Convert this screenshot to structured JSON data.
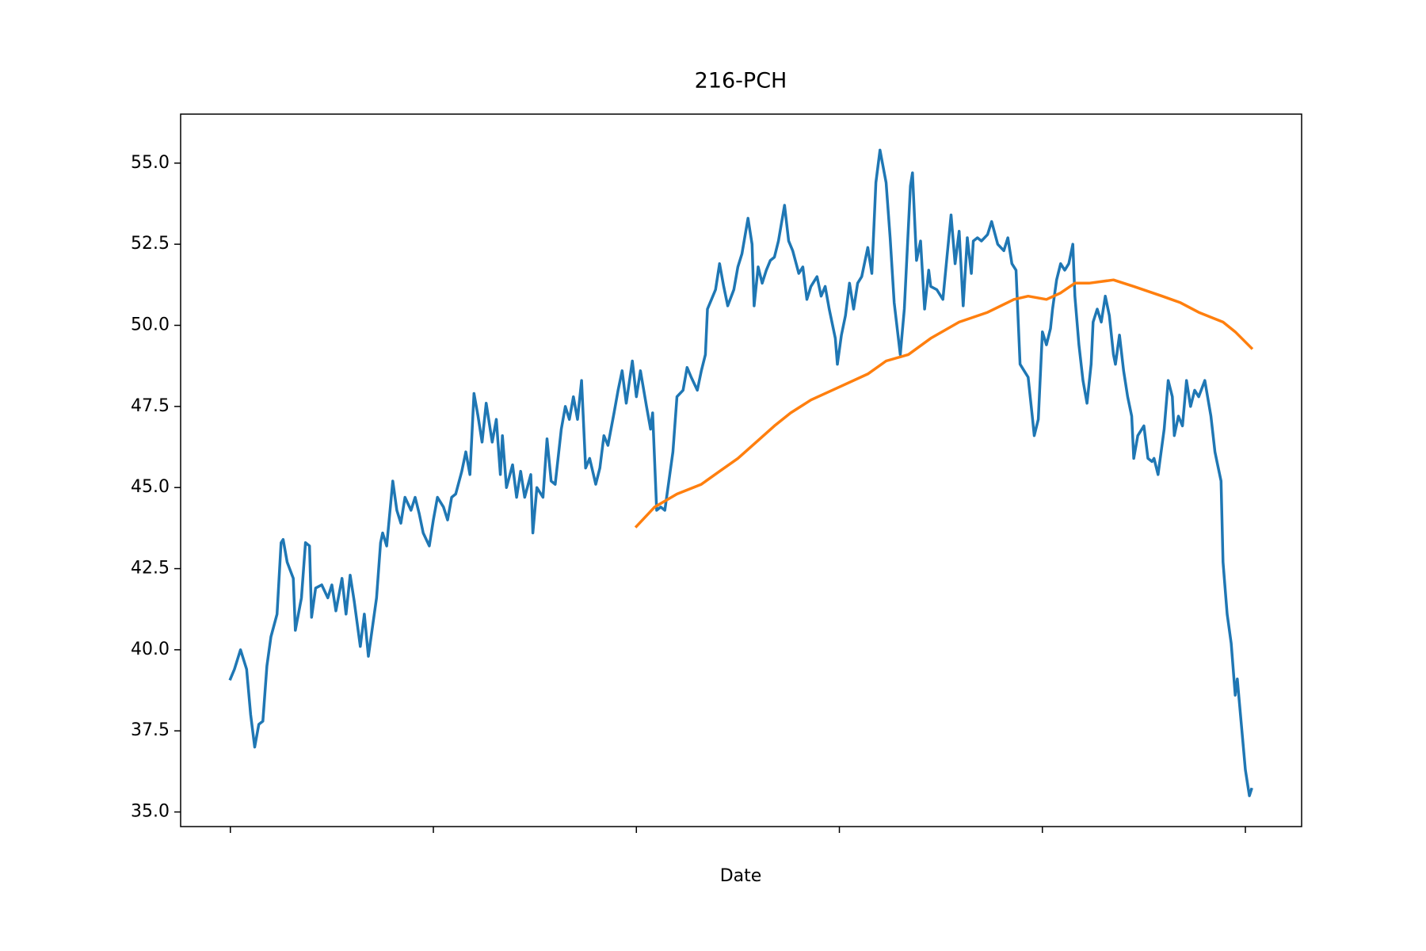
{
  "chart_data": {
    "type": "line",
    "title": "216-PCH",
    "x_label": "Date",
    "xlim": [
      -24.5,
      527.7
    ],
    "xticks": [
      0,
      100,
      200,
      300,
      400,
      500
    ],
    "ylim": [
      34.55,
      56.51
    ],
    "yticks": [
      {
        "value": 35,
        "label": "35.0"
      },
      {
        "value": 37.5,
        "label": "37.5"
      },
      {
        "value": 40,
        "label": "40.0"
      },
      {
        "value": 42.5,
        "label": "42.5"
      },
      {
        "value": 45,
        "label": "45.0"
      },
      {
        "value": 47.5,
        "label": "47.5"
      },
      {
        "value": 50,
        "label": "50.0"
      },
      {
        "value": 52.5,
        "label": "52.5"
      },
      {
        "value": 55,
        "label": "55.0"
      }
    ],
    "series": [
      {
        "color": "#1f77b4",
        "x": [
          0,
          2,
          5,
          8,
          10,
          12,
          14,
          16,
          18,
          20,
          23,
          25,
          26,
          28,
          31,
          32,
          35,
          37,
          39,
          40,
          42,
          45,
          48,
          50,
          52,
          55,
          57,
          59,
          61,
          64,
          66,
          68,
          72,
          74,
          75,
          77,
          80,
          82,
          84,
          86,
          89,
          91,
          93,
          95,
          98,
          100,
          102,
          105,
          107,
          109,
          111,
          114,
          116,
          118,
          120,
          122,
          124,
          126,
          129,
          131,
          133,
          134,
          136,
          139,
          141,
          143,
          145,
          148,
          149,
          151,
          154,
          156,
          158,
          160,
          163,
          165,
          167,
          169,
          171,
          173,
          175,
          177,
          180,
          182,
          184,
          186,
          189,
          191,
          193,
          195,
          198,
          200,
          202,
          205,
          207,
          208,
          210,
          212,
          214,
          216,
          218,
          220,
          223,
          225,
          227,
          230,
          232,
          234,
          235,
          237,
          239,
          241,
          243,
          245,
          248,
          250,
          252,
          255,
          257,
          258,
          260,
          262,
          264,
          266,
          268,
          270,
          273,
          275,
          277,
          280,
          282,
          284,
          286,
          289,
          291,
          293,
          295,
          298,
          299,
          301,
          303,
          305,
          307,
          309,
          311,
          314,
          316,
          318,
          320,
          323,
          325,
          327,
          330,
          332,
          335,
          336,
          338,
          340,
          342,
          344,
          345,
          348,
          351,
          353,
          355,
          357,
          359,
          361,
          363,
          365,
          366,
          368,
          370,
          373,
          375,
          378,
          381,
          383,
          385,
          387,
          389,
          391,
          393,
          395,
          396,
          398,
          400,
          402,
          404,
          405,
          407,
          409,
          411,
          413,
          415,
          416,
          418,
          420,
          422,
          424,
          425,
          427,
          429,
          431,
          433,
          435,
          436,
          438,
          440,
          442,
          444,
          445,
          447,
          450,
          452,
          454,
          455,
          457,
          460,
          462,
          464,
          465,
          467,
          469,
          471,
          473,
          475,
          477,
          480,
          483,
          485,
          486,
          488,
          489,
          491,
          493,
          495,
          496,
          498,
          500,
          502,
          503
        ],
        "values": [
          39.1,
          39.4,
          40.0,
          39.4,
          38.0,
          37.0,
          37.7,
          37.8,
          39.5,
          40.4,
          41.1,
          43.3,
          43.4,
          42.7,
          42.2,
          40.6,
          41.6,
          43.3,
          43.2,
          41.0,
          41.9,
          42.0,
          41.6,
          42.0,
          41.2,
          42.2,
          41.1,
          42.3,
          41.5,
          40.1,
          41.1,
          39.8,
          41.6,
          43.3,
          43.6,
          43.2,
          45.2,
          44.3,
          43.9,
          44.7,
          44.3,
          44.7,
          44.2,
          43.6,
          43.2,
          44.0,
          44.7,
          44.4,
          44.0,
          44.7,
          44.8,
          45.5,
          46.1,
          45.4,
          47.9,
          47.2,
          46.4,
          47.6,
          46.4,
          47.1,
          45.4,
          46.6,
          45.0,
          45.7,
          44.7,
          45.5,
          44.7,
          45.4,
          43.6,
          45.0,
          44.7,
          46.5,
          45.2,
          45.1,
          46.8,
          47.5,
          47.1,
          47.8,
          47.1,
          48.3,
          45.6,
          45.9,
          45.1,
          45.6,
          46.6,
          46.3,
          47.3,
          48.0,
          48.6,
          47.6,
          48.9,
          47.8,
          48.6,
          47.5,
          46.8,
          47.3,
          44.3,
          44.4,
          44.3,
          45.2,
          46.1,
          47.8,
          48.0,
          48.7,
          48.4,
          48.0,
          48.6,
          49.1,
          50.5,
          50.8,
          51.1,
          51.9,
          51.2,
          50.6,
          51.1,
          51.8,
          52.2,
          53.3,
          52.5,
          50.6,
          51.8,
          51.3,
          51.7,
          52.0,
          52.1,
          52.6,
          53.7,
          52.6,
          52.3,
          51.6,
          51.8,
          50.8,
          51.2,
          51.5,
          50.9,
          51.2,
          50.5,
          49.6,
          48.8,
          49.7,
          50.3,
          51.3,
          50.5,
          51.3,
          51.5,
          52.4,
          51.6,
          54.4,
          55.4,
          54.4,
          52.7,
          50.7,
          49.1,
          50.5,
          54.3,
          54.7,
          52.0,
          52.6,
          50.5,
          51.7,
          51.2,
          51.1,
          50.8,
          52.1,
          53.4,
          51.9,
          52.9,
          50.6,
          52.7,
          51.6,
          52.6,
          52.7,
          52.6,
          52.8,
          53.2,
          52.5,
          52.3,
          52.7,
          51.9,
          51.7,
          48.8,
          48.6,
          48.4,
          47.2,
          46.6,
          47.1,
          49.8,
          49.4,
          49.9,
          50.5,
          51.4,
          51.9,
          51.7,
          51.9,
          52.5,
          50.9,
          49.4,
          48.3,
          47.6,
          48.8,
          50.1,
          50.5,
          50.1,
          50.9,
          50.3,
          49.1,
          48.8,
          49.7,
          48.6,
          47.8,
          47.2,
          45.9,
          46.6,
          46.9,
          45.9,
          45.8,
          45.9,
          45.4,
          46.8,
          48.3,
          47.8,
          46.6,
          47.2,
          46.9,
          48.3,
          47.5,
          48.0,
          47.8,
          48.3,
          47.2,
          46.1,
          45.8,
          45.2,
          42.7,
          41.1,
          40.2,
          38.6,
          39.1,
          37.7,
          36.3,
          35.5,
          35.7
        ]
      },
      {
        "color": "#ff7f0e",
        "x": [
          200,
          209,
          220,
          232,
          241,
          250,
          259,
          268,
          276,
          286,
          300,
          314,
          323,
          334,
          345,
          359,
          373,
          386,
          393,
          402,
          409,
          416,
          423,
          435,
          445,
          459,
          468,
          477,
          489,
          495,
          503
        ],
        "values": [
          43.8,
          44.4,
          44.8,
          45.1,
          45.5,
          45.9,
          46.4,
          46.9,
          47.3,
          47.7,
          48.1,
          48.5,
          48.9,
          49.1,
          49.6,
          50.1,
          50.4,
          50.8,
          50.9,
          50.8,
          51.0,
          51.3,
          51.3,
          51.4,
          51.2,
          50.9,
          50.7,
          50.4,
          50.1,
          49.8,
          49.3
        ]
      }
    ]
  }
}
